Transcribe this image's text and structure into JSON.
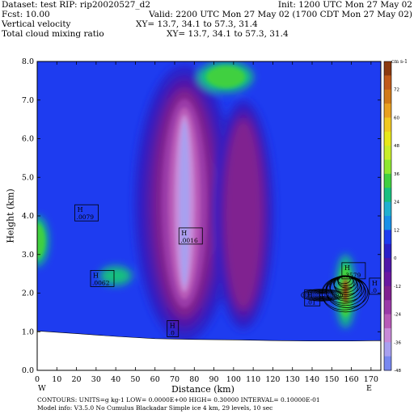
{
  "header": {
    "dataset": "Dataset: test   RIP: rip20020527_d2",
    "init": "Init: 1200 UTC Mon 27 May 02",
    "fcst": "Fcst:    10.00",
    "valid": "Valid: 2200 UTC Mon 27 May 02 (1700 CDT Mon 27 May 02)",
    "field1": "Vertical velocity",
    "xy1": "XY=  13.7, 34.1 to  57.3, 31.4",
    "field2": "Total cloud mixing ratio",
    "xy2": "XY=  13.7, 34.1 to  57.3, 31.4"
  },
  "footer": {
    "contours": "CONTOURS:  UNITS=g kg-1   LOW= 0.0000E+00   HIGH= 0.30000       INTERVAL=  0.10000E-01",
    "model": "Model info: V3.5.0 No Cumulus Blackadar  Simple ice     4 km,   29 levels,    10 sec"
  },
  "colors": {
    "terrain": "#ffffff",
    "background_field": "#1e3cf0",
    "contour_lines": "#000000"
  },
  "chart_data": {
    "type": "heatmap",
    "xlabel": "Distance (km)",
    "ylabel": "Height (km)",
    "xlim": [
      0,
      175
    ],
    "ylim": [
      0,
      8
    ],
    "x_ticks": [
      "0",
      "10",
      "20",
      "30",
      "40",
      "50",
      "60",
      "70",
      "80",
      "90",
      "100",
      "110",
      "120",
      "130",
      "140",
      "150",
      "160",
      "170"
    ],
    "y_ticks": [
      "0.0",
      "1.0",
      "2.0",
      "3.0",
      "4.0",
      "5.0",
      "6.0",
      "7.0",
      "8.0"
    ],
    "x_end_labels": {
      "left": "W",
      "right": "E"
    },
    "colorbar": {
      "units": "cm s-1",
      "labels": [
        "72",
        "60",
        "48",
        "36",
        "24",
        "12",
        "0",
        "-12",
        "-24",
        "-36",
        "-48"
      ],
      "colors": [
        "#8b3a10",
        "#c05a1a",
        "#d07a1a",
        "#e8a020",
        "#f0c820",
        "#e8e818",
        "#c8ee28",
        "#8ee830",
        "#40d040",
        "#18c080",
        "#20b0d0",
        "#1890e8",
        "#1e3cf0",
        "#2a20c8",
        "#5018a8",
        "#6a18a0",
        "#802090",
        "#9a3aa8",
        "#b85ab8",
        "#c88ad8",
        "#a8a0f0",
        "#7888f0"
      ]
    },
    "terrain_height_km": [
      {
        "x": 0,
        "z": 1.02
      },
      {
        "x": 20,
        "z": 0.95
      },
      {
        "x": 40,
        "z": 0.88
      },
      {
        "x": 60,
        "z": 0.82
      },
      {
        "x": 80,
        "z": 0.8
      },
      {
        "x": 100,
        "z": 0.79
      },
      {
        "x": 120,
        "z": 0.77
      },
      {
        "x": 140,
        "z": 0.76
      },
      {
        "x": 160,
        "z": 0.76
      },
      {
        "x": 175,
        "z": 0.77
      }
    ],
    "annotations": [
      {
        "label": "H",
        "value": ".0079",
        "x": 20,
        "z": 4.1
      },
      {
        "label": "H",
        "value": ".0016",
        "x": 73,
        "z": 3.5
      },
      {
        "label": "H",
        "value": ".0062",
        "x": 28,
        "z": 2.4
      },
      {
        "label": "H",
        "value": ".0",
        "x": 67,
        "z": 1.1
      },
      {
        "label": "H",
        "value": ".01",
        "x": 137,
        "z": 1.9
      },
      {
        "label": "H",
        "value": ".3579",
        "x": 156,
        "z": 2.6
      },
      {
        "label": "H",
        "value": ".0",
        "x": 170,
        "z": 2.2
      }
    ],
    "field_features": [
      {
        "kind": "updraft",
        "name": "central",
        "x": 75,
        "zmin": 1.4,
        "zmax": 7.9,
        "value_cm_s": -60
      },
      {
        "kind": "updraft",
        "name": "east",
        "x": 105,
        "zmin": 1.6,
        "zmax": 7.0,
        "value_cm_s": -30
      },
      {
        "kind": "downdraft",
        "name": "top",
        "x": 96,
        "zmin": 7.2,
        "zmax": 8.0,
        "value_cm_s": 24
      },
      {
        "kind": "downdraft",
        "name": "west",
        "x": 0,
        "zmin": 2.7,
        "zmax": 4.0,
        "value_cm_s": 24
      },
      {
        "kind": "downdraft",
        "name": "lowwest",
        "x": 40,
        "zmin": 2.2,
        "zmax": 2.7,
        "value_cm_s": 12
      },
      {
        "kind": "downdraft",
        "name": "cloud",
        "x": 157,
        "zmin": 1.1,
        "zmax": 3.0,
        "value_cm_s": 30
      }
    ],
    "cloud_contours": {
      "low": 0.0,
      "high": 0.3,
      "interval": 0.01,
      "units": "g kg-1"
    }
  }
}
